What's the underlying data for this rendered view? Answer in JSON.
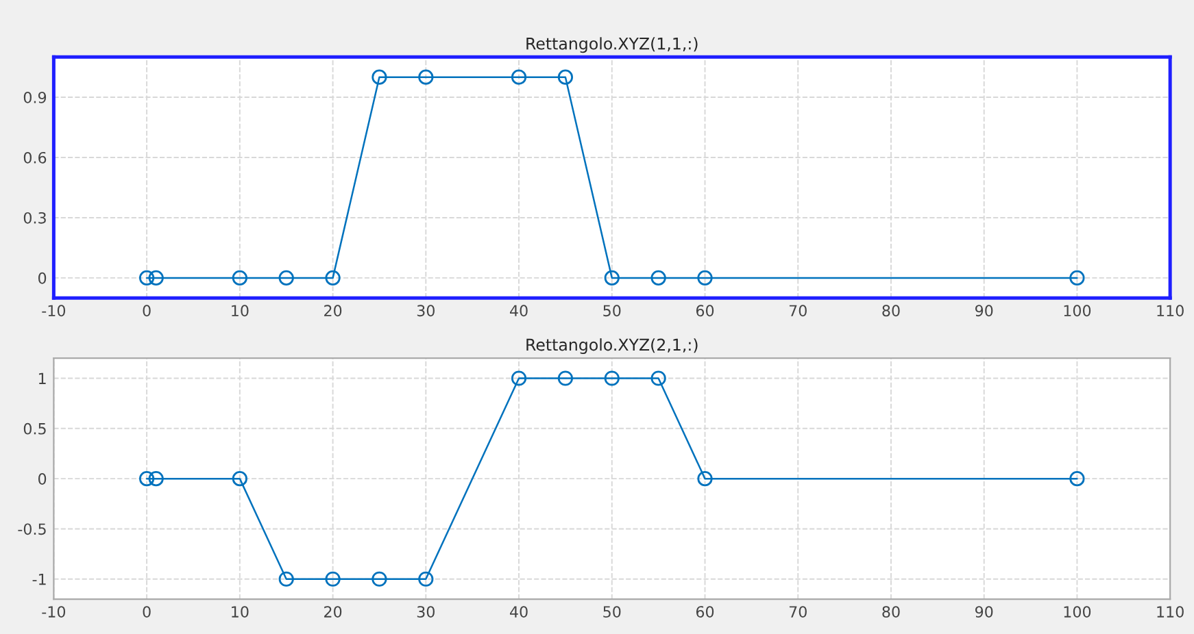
{
  "chart_data": [
    {
      "type": "line",
      "title": "Rettangolo.XYZ(1,1,:)",
      "x": [
        0,
        1,
        10,
        15,
        20,
        25,
        30,
        40,
        45,
        50,
        55,
        60,
        100
      ],
      "series": [
        {
          "color": "#0072bd",
          "values": [
            0,
            0,
            0,
            0,
            0,
            1,
            1,
            1,
            1,
            0,
            0,
            0,
            0
          ]
        }
      ],
      "xlim": [
        -10,
        110
      ],
      "xticks": [
        -10,
        0,
        10,
        20,
        30,
        40,
        50,
        60,
        70,
        80,
        90,
        100,
        110
      ],
      "ylim": [
        -0.1,
        1.1
      ],
      "yticks": [
        0,
        0.3,
        0.6,
        0.9
      ],
      "grid": true,
      "marker": "circle",
      "line_style": "solid"
    },
    {
      "type": "line",
      "title": "Rettangolo.XYZ(2,1,:)",
      "x": [
        0,
        1,
        10,
        15,
        20,
        25,
        30,
        40,
        45,
        50,
        55,
        60,
        100
      ],
      "series": [
        {
          "color": "#0072bd",
          "values": [
            0,
            0,
            0,
            -1,
            -1,
            -1,
            -1,
            1,
            1,
            1,
            1,
            0,
            0
          ]
        }
      ],
      "xlim": [
        -10,
        110
      ],
      "xticks": [
        -10,
        0,
        10,
        20,
        30,
        40,
        50,
        60,
        70,
        80,
        90,
        100,
        110
      ],
      "ylim": [
        -1.2,
        1.2
      ],
      "yticks": [
        -1,
        -0.5,
        0,
        0.5,
        1
      ],
      "grid": true,
      "marker": "circle",
      "line_style": "solid"
    }
  ]
}
